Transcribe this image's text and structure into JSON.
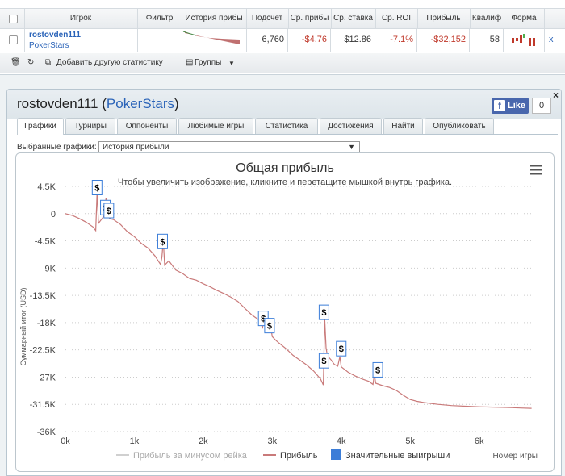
{
  "stats_table": {
    "headers": [
      "Игрок",
      "Фильтр",
      "История прибы",
      "Подсчет",
      "Ср. прибы",
      "Ср. ставка",
      "Ср. ROI",
      "Прибыль",
      "Квалиф",
      "Форма"
    ],
    "row": {
      "player_name": "rostovden111",
      "site": "PokerStars",
      "count": "6,760",
      "avg_profit": "-$4.76",
      "avg_stake": "$12.86",
      "avg_roi": "-7.1%",
      "profit": "-$32,152",
      "qualified": "58",
      "remove": "x"
    },
    "footer": {
      "add_stats": "Добавить другую статистику",
      "groups": "Группы"
    },
    "colors": {
      "negative": "#c0392b",
      "link": "#2a63b8"
    }
  },
  "window": {
    "player_name": "rostovden111",
    "site": "PokerStars",
    "like_label": "Like",
    "like_count": "0",
    "close": "×",
    "tabs": [
      "Графики",
      "Турниры",
      "Оппоненты",
      "Любимые игры",
      "Статистика",
      "Достижения",
      "Найти",
      "Опубликовать"
    ],
    "active_tab": "Графики",
    "graph_select_label": "Выбранные графики:",
    "graph_select_value": "История прибыли"
  },
  "chart_data": {
    "type": "line",
    "title": "Общая прибыль",
    "subtitle": "Чтобы увеличить изображение, кликните и перетащите мышкой внутрь графика.",
    "xlabel": "Номер игры",
    "ylabel": "Суммарный итог (USD)",
    "xlim": [
      0,
      6800
    ],
    "ylim": [
      -36000,
      4500
    ],
    "x_ticks": [
      0,
      1000,
      2000,
      3000,
      4000,
      5000,
      6000
    ],
    "x_tick_labels": [
      "0k",
      "1k",
      "2k",
      "3k",
      "4k",
      "5k",
      "6k"
    ],
    "y_ticks": [
      4500,
      0,
      -4500,
      -9000,
      -13500,
      -18000,
      -22500,
      -27000,
      -31500,
      -36000
    ],
    "y_tick_labels": [
      "4.5K",
      "0",
      "-4.5K",
      "-9K",
      "-13.5K",
      "-18K",
      "-22.5K",
      "-27K",
      "-31.5K",
      "-36K"
    ],
    "grid": "horizontal dotted",
    "legend_position": "bottom",
    "legend": [
      "Прибыль за минусом рейка",
      "Прибыль",
      "Значительные выигрыши"
    ],
    "series": [
      {
        "name": "Прибыль",
        "color": "#c97a7a",
        "points": [
          [
            0,
            0
          ],
          [
            100,
            -300
          ],
          [
            200,
            -800
          ],
          [
            300,
            -1400
          ],
          [
            400,
            -2200
          ],
          [
            440,
            -2800
          ],
          [
            460,
            3600
          ],
          [
            480,
            -1600
          ],
          [
            560,
            -400
          ],
          [
            590,
            2600
          ],
          [
            620,
            200
          ],
          [
            640,
            -800
          ],
          [
            700,
            -1000
          ],
          [
            800,
            -1800
          ],
          [
            900,
            -3000
          ],
          [
            1000,
            -3800
          ],
          [
            1100,
            -4900
          ],
          [
            1200,
            -5700
          ],
          [
            1300,
            -7000
          ],
          [
            1380,
            -8400
          ],
          [
            1400,
            -7200
          ],
          [
            1420,
            -4400
          ],
          [
            1440,
            -8500
          ],
          [
            1500,
            -7800
          ],
          [
            1600,
            -9300
          ],
          [
            1700,
            -9900
          ],
          [
            1800,
            -10700
          ],
          [
            1900,
            -11000
          ],
          [
            2000,
            -11600
          ],
          [
            2100,
            -12100
          ],
          [
            2200,
            -12700
          ],
          [
            2300,
            -13200
          ],
          [
            2400,
            -13800
          ],
          [
            2500,
            -14500
          ],
          [
            2600,
            -15600
          ],
          [
            2700,
            -16700
          ],
          [
            2800,
            -17500
          ],
          [
            2860,
            -18800
          ],
          [
            2880,
            -16600
          ],
          [
            2920,
            -19400
          ],
          [
            2960,
            -17300
          ],
          [
            3000,
            -20300
          ],
          [
            3050,
            -20900
          ],
          [
            3100,
            -21400
          ],
          [
            3200,
            -22300
          ],
          [
            3300,
            -23400
          ],
          [
            3400,
            -24200
          ],
          [
            3500,
            -25000
          ],
          [
            3600,
            -26000
          ],
          [
            3700,
            -27300
          ],
          [
            3740,
            -28300
          ],
          [
            3760,
            -17300
          ],
          [
            3780,
            -22200
          ],
          [
            3800,
            -23500
          ],
          [
            3850,
            -24100
          ],
          [
            3900,
            -24900
          ],
          [
            3950,
            -25200
          ],
          [
            3980,
            -23600
          ],
          [
            4000,
            -25300
          ],
          [
            4100,
            -26200
          ],
          [
            4200,
            -26800
          ],
          [
            4300,
            -27300
          ],
          [
            4400,
            -27700
          ],
          [
            4460,
            -28200
          ],
          [
            4480,
            -26600
          ],
          [
            4500,
            -28000
          ],
          [
            4600,
            -28400
          ],
          [
            4700,
            -28700
          ],
          [
            4800,
            -29200
          ],
          [
            4900,
            -30000
          ],
          [
            5000,
            -30700
          ],
          [
            5100,
            -31000
          ],
          [
            5200,
            -31200
          ],
          [
            5400,
            -31500
          ],
          [
            5600,
            -31700
          ],
          [
            5800,
            -31800
          ],
          [
            6000,
            -31900
          ],
          [
            6200,
            -31950
          ],
          [
            6400,
            -32000
          ],
          [
            6600,
            -32100
          ],
          [
            6760,
            -32152
          ]
        ]
      }
    ],
    "big_wins": [
      [
        460,
        4300
      ],
      [
        580,
        1000
      ],
      [
        630,
        500
      ],
      [
        1410,
        -4600
      ],
      [
        2870,
        -17300
      ],
      [
        2960,
        -18500
      ],
      [
        3750,
        -16300
      ],
      [
        3750,
        -24300
      ],
      [
        4000,
        -22300
      ],
      [
        4530,
        -25800
      ]
    ],
    "big_win_label": "$"
  }
}
